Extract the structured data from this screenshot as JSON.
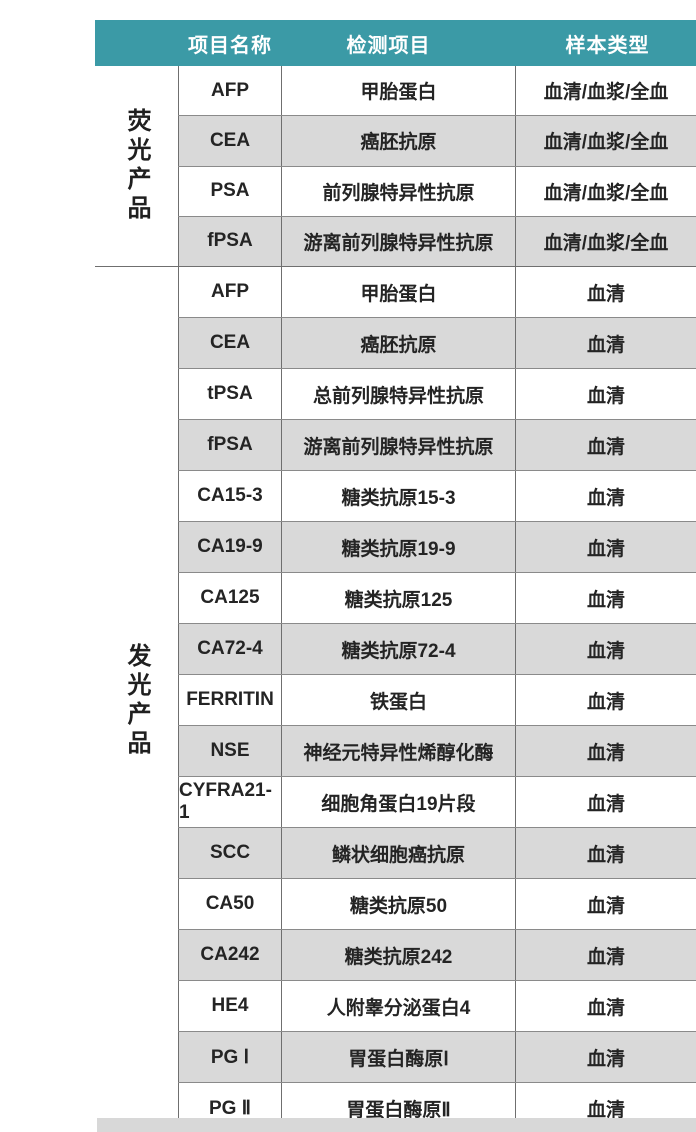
{
  "table": {
    "columns": [
      "项目名称",
      "检测项目",
      "样本类型"
    ],
    "sections": [
      {
        "group": "荧光产品",
        "rows": [
          {
            "code": "AFP",
            "test": "甲胎蛋白",
            "sample": "血清/血浆/全血"
          },
          {
            "code": "CEA",
            "test": "癌胚抗原",
            "sample": "血清/血浆/全血"
          },
          {
            "code": "PSA",
            "test": "前列腺特异性抗原",
            "sample": "血清/血浆/全血"
          },
          {
            "code": "fPSA",
            "test": "游离前列腺特异性抗原",
            "sample": "血清/血浆/全血"
          }
        ]
      },
      {
        "group": "发光产品",
        "rows": [
          {
            "code": "AFP",
            "test": "甲胎蛋白",
            "sample": "血清"
          },
          {
            "code": "CEA",
            "test": "癌胚抗原",
            "sample": "血清"
          },
          {
            "code": "tPSA",
            "test": "总前列腺特异性抗原",
            "sample": "血清"
          },
          {
            "code": "fPSA",
            "test": "游离前列腺特异性抗原",
            "sample": "血清"
          },
          {
            "code": "CA15-3",
            "test": "糖类抗原15-3",
            "sample": "血清"
          },
          {
            "code": "CA19-9",
            "test": "糖类抗原19-9",
            "sample": "血清"
          },
          {
            "code": "CA125",
            "test": "糖类抗原125",
            "sample": "血清"
          },
          {
            "code": "CA72-4",
            "test": "糖类抗原72-4",
            "sample": "血清"
          },
          {
            "code": "FERRITIN",
            "test": "铁蛋白",
            "sample": "血清"
          },
          {
            "code": "NSE",
            "test": "神经元特异性烯醇化酶",
            "sample": "血清"
          },
          {
            "code": "CYFRA21-1",
            "test": "细胞角蛋白19片段",
            "sample": "血清"
          },
          {
            "code": "SCC",
            "test": "鳞状细胞癌抗原",
            "sample": "血清"
          },
          {
            "code": "CA50",
            "test": "糖类抗原50",
            "sample": "血清"
          },
          {
            "code": "CA242",
            "test": "糖类抗原242",
            "sample": "血清"
          },
          {
            "code": "HE4",
            "test": "人附睾分泌蛋白4",
            "sample": "血清"
          },
          {
            "code": "PG Ⅰ",
            "test": "胃蛋白酶原Ⅰ",
            "sample": "血清"
          },
          {
            "code": "PG Ⅱ",
            "test": "胃蛋白酶原Ⅱ",
            "sample": "血清"
          }
        ]
      }
    ]
  },
  "colors": {
    "header_bg": "#3b9aa6",
    "row_alt_bg": "#d9d9d9",
    "border_dark": "#6f6f6f",
    "border_light": "#8a8a8a",
    "footer_bar": "#d8d8d8",
    "header_text": "#ffffff",
    "body_text": "#242424"
  }
}
